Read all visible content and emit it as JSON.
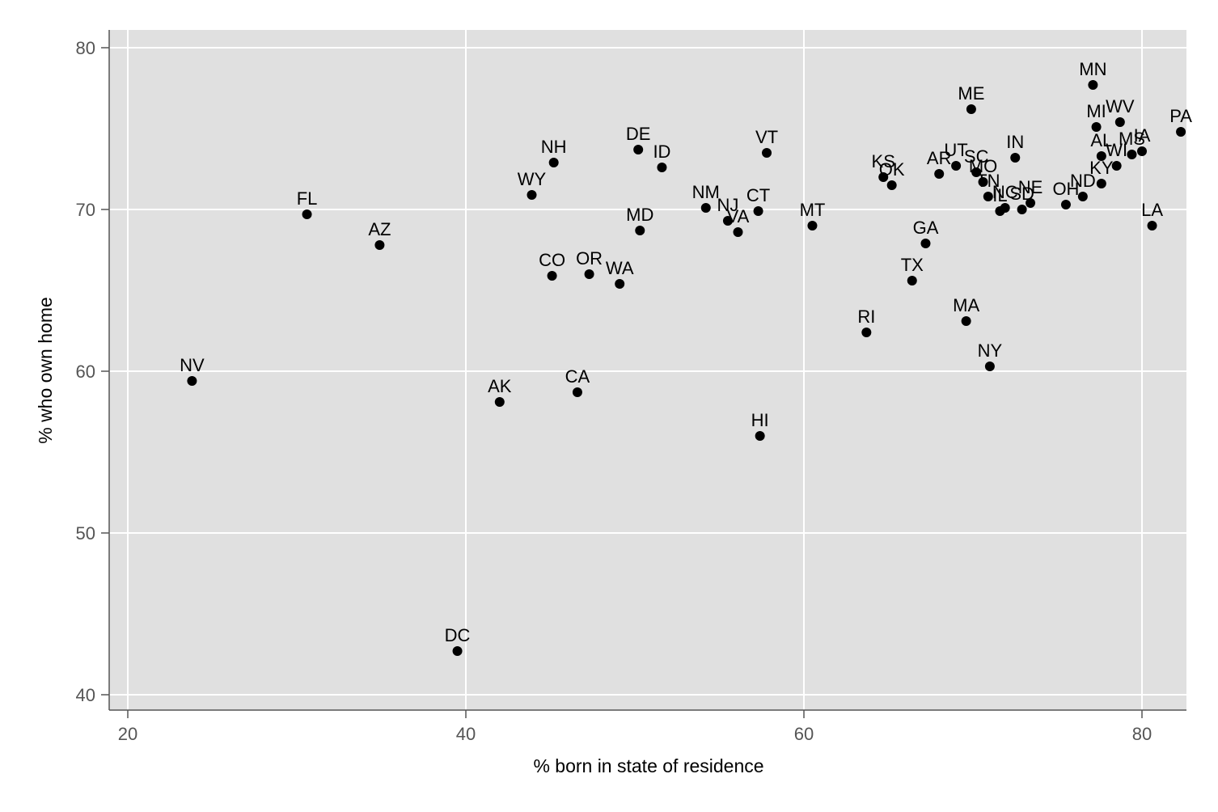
{
  "chart_data": {
    "type": "scatter",
    "title": "",
    "xlabel": "% born in state of residence",
    "ylabel": "% who own home",
    "xlim": [
      17,
      83
    ],
    "ylim": [
      39,
      81
    ],
    "xticks": [
      20,
      40,
      60,
      80
    ],
    "yticks": [
      40,
      50,
      60,
      70,
      80
    ],
    "grid": true,
    "legend": "none",
    "colors": {
      "panel": "#e0e0e0",
      "grid": "#ffffff",
      "point": "#000000",
      "axis": "#555555"
    },
    "points": [
      {
        "label": "NV",
        "x": 23.8,
        "y": 59.4
      },
      {
        "label": "FL",
        "x": 30.6,
        "y": 69.7
      },
      {
        "label": "AZ",
        "x": 34.9,
        "y": 67.8
      },
      {
        "label": "DC",
        "x": 39.5,
        "y": 42.7
      },
      {
        "label": "AK",
        "x": 42.0,
        "y": 58.1
      },
      {
        "label": "WY",
        "x": 43.9,
        "y": 70.9
      },
      {
        "label": "CO",
        "x": 45.1,
        "y": 65.9
      },
      {
        "label": "NH",
        "x": 45.2,
        "y": 72.9
      },
      {
        "label": "CA",
        "x": 46.6,
        "y": 58.7
      },
      {
        "label": "OR",
        "x": 47.3,
        "y": 66.0
      },
      {
        "label": "WA",
        "x": 49.1,
        "y": 65.4
      },
      {
        "label": "DE",
        "x": 50.2,
        "y": 73.7
      },
      {
        "label": "MD",
        "x": 50.3,
        "y": 68.7
      },
      {
        "label": "ID",
        "x": 51.6,
        "y": 72.6
      },
      {
        "label": "NM",
        "x": 54.2,
        "y": 70.1
      },
      {
        "label": "NJ",
        "x": 55.5,
        "y": 69.3
      },
      {
        "label": "VA",
        "x": 56.1,
        "y": 68.6
      },
      {
        "label": "CT",
        "x": 57.3,
        "y": 69.9
      },
      {
        "label": "HI",
        "x": 57.4,
        "y": 56.0
      },
      {
        "label": "VT",
        "x": 57.8,
        "y": 73.5
      },
      {
        "label": "MT",
        "x": 60.5,
        "y": 69.0
      },
      {
        "label": "RI",
        "x": 63.7,
        "y": 62.4
      },
      {
        "label": "KS",
        "x": 64.7,
        "y": 72.0
      },
      {
        "label": "OK",
        "x": 65.2,
        "y": 71.5
      },
      {
        "label": "TX",
        "x": 66.4,
        "y": 65.6
      },
      {
        "label": "GA",
        "x": 67.2,
        "y": 67.9
      },
      {
        "label": "AR",
        "x": 68.0,
        "y": 72.2
      },
      {
        "label": "UT",
        "x": 69.0,
        "y": 72.7
      },
      {
        "label": "MA",
        "x": 69.6,
        "y": 63.1
      },
      {
        "label": "ME",
        "x": 69.9,
        "y": 76.2
      },
      {
        "label": "SC",
        "x": 70.2,
        "y": 72.3
      },
      {
        "label": "MO",
        "x": 70.6,
        "y": 71.7
      },
      {
        "label": "TN",
        "x": 70.9,
        "y": 70.8
      },
      {
        "label": "NY",
        "x": 71.0,
        "y": 60.3
      },
      {
        "label": "IL",
        "x": 71.6,
        "y": 69.9
      },
      {
        "label": "NC",
        "x": 71.9,
        "y": 70.1
      },
      {
        "label": "IN",
        "x": 72.5,
        "y": 73.2
      },
      {
        "label": "SD",
        "x": 72.9,
        "y": 70.0
      },
      {
        "label": "NE",
        "x": 73.4,
        "y": 70.4
      },
      {
        "label": "OH",
        "x": 75.5,
        "y": 70.3
      },
      {
        "label": "ND",
        "x": 76.5,
        "y": 70.8
      },
      {
        "label": "MN",
        "x": 77.1,
        "y": 77.7
      },
      {
        "label": "MI",
        "x": 77.3,
        "y": 75.1
      },
      {
        "label": "AL",
        "x": 77.6,
        "y": 73.3
      },
      {
        "label": "KY",
        "x": 77.6,
        "y": 71.6
      },
      {
        "label": "WV",
        "x": 78.7,
        "y": 75.4
      },
      {
        "label": "MS",
        "x": 79.4,
        "y": 73.4
      },
      {
        "label": "WI",
        "x": 78.5,
        "y": 72.7
      },
      {
        "label": "IA",
        "x": 80.0,
        "y": 73.6
      },
      {
        "label": "LA",
        "x": 80.6,
        "y": 69.0
      },
      {
        "label": "PA",
        "x": 82.3,
        "y": 74.8
      }
    ]
  }
}
